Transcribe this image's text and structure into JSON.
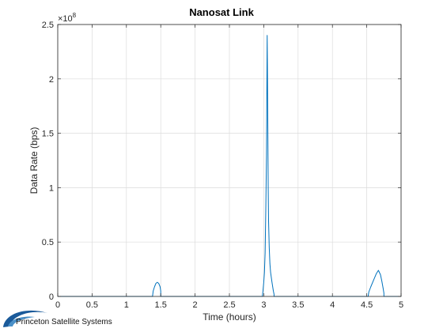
{
  "chart_data": {
    "type": "line",
    "title": "Nanosat Link",
    "xlabel": "Time (hours)",
    "ylabel": "Data Rate (bps)",
    "xlim": [
      0,
      5
    ],
    "ylim": [
      0,
      2.5
    ],
    "y_exponent_label": "×10",
    "y_exponent_power": "8",
    "y_scale_factor": 100000000,
    "grid": true,
    "x_ticks": [
      "0",
      "0.5",
      "1",
      "1.5",
      "2",
      "2.5",
      "3",
      "3.5",
      "4",
      "4.5",
      "5"
    ],
    "y_ticks": [
      "0",
      "0.5",
      "1",
      "1.5",
      "2",
      "2.5"
    ],
    "series": [
      {
        "color": "#0072BD",
        "x": [
          0,
          1.38,
          1.39,
          1.41,
          1.43,
          1.45,
          1.47,
          1.49,
          1.5,
          1.5,
          2.98,
          2.99,
          3.0,
          3.01,
          3.02,
          3.03,
          3.04,
          3.045,
          3.05,
          3.055,
          3.06,
          3.065,
          3.07,
          3.08,
          3.09,
          3.1,
          3.12,
          3.14,
          3.15,
          3.15,
          4.52,
          4.53,
          4.56,
          4.6,
          4.64,
          4.67,
          4.7,
          4.72,
          4.74,
          4.75,
          4.75,
          5
        ],
        "y": [
          0,
          0,
          0.05,
          0.09,
          0.12,
          0.13,
          0.12,
          0.09,
          0.05,
          0,
          0,
          0.06,
          0.13,
          0.22,
          0.4,
          0.8,
          1.3,
          1.9,
          2.4,
          2.0,
          1.5,
          1.0,
          0.7,
          0.45,
          0.3,
          0.22,
          0.13,
          0.05,
          0.02,
          0,
          0,
          0.04,
          0.09,
          0.15,
          0.21,
          0.24,
          0.2,
          0.14,
          0.07,
          0.03,
          0,
          0
        ]
      }
    ]
  },
  "logo": {
    "text": "Princeton Satellite Systems",
    "color": "#1a5a9a"
  }
}
